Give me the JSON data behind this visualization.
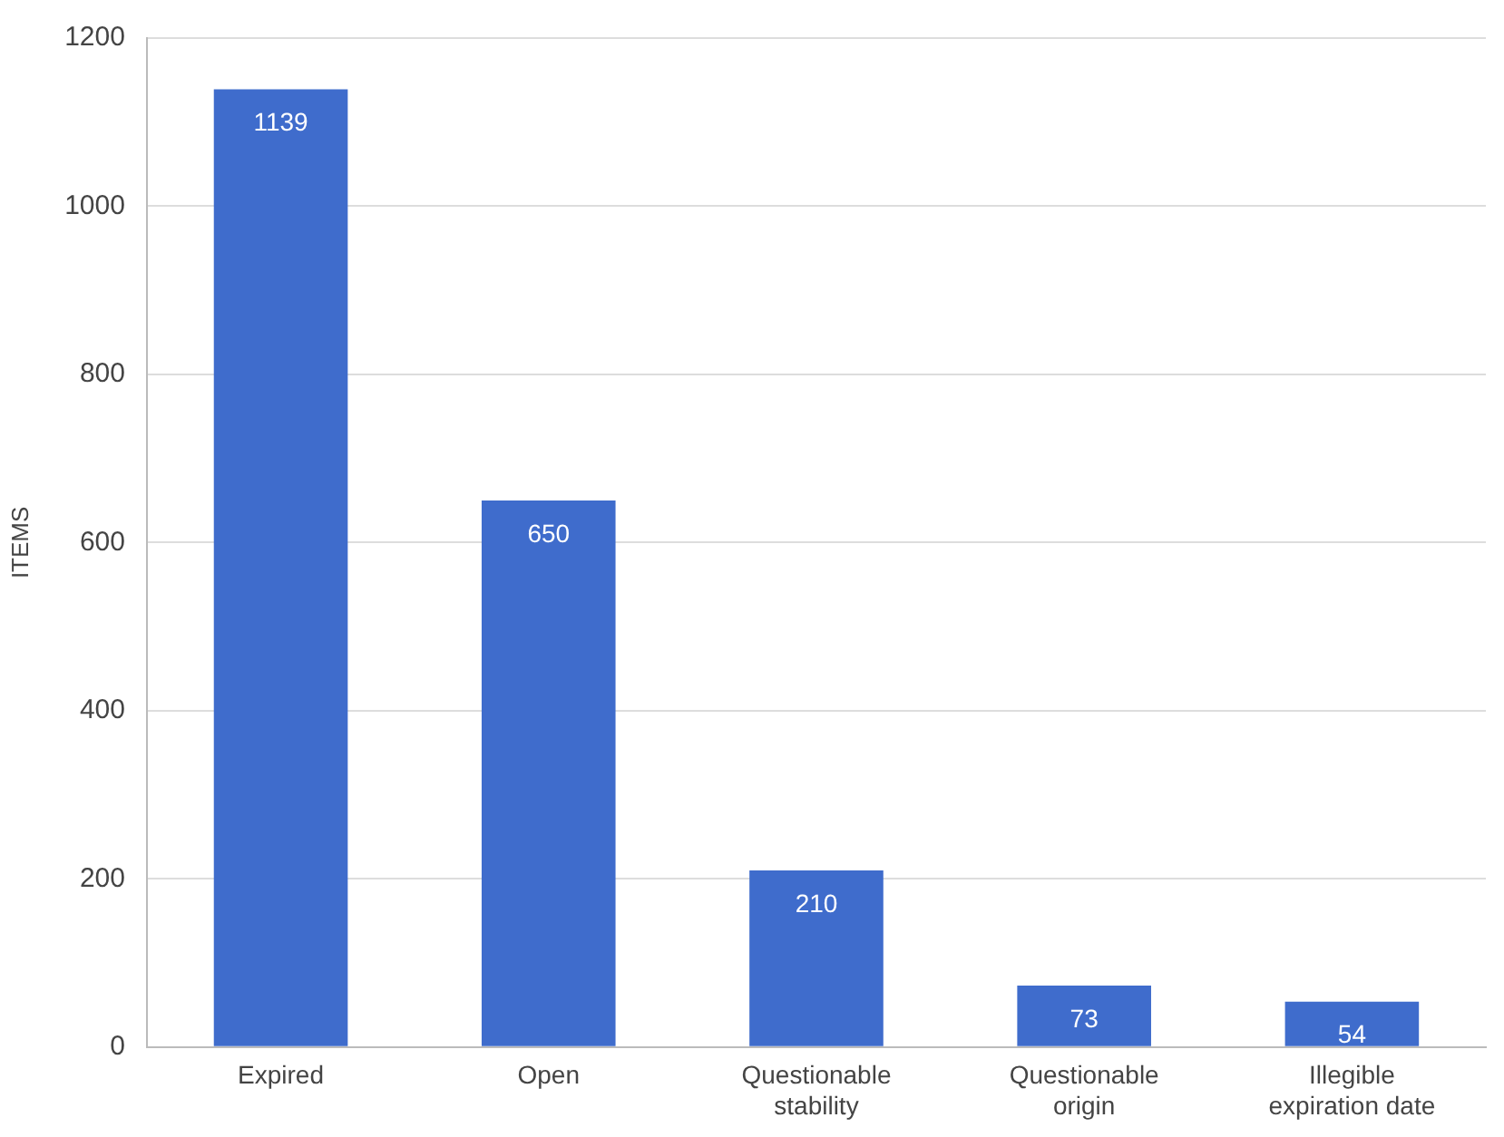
{
  "chart_data": {
    "type": "bar",
    "ylabel": "ITEMS",
    "categories": [
      "Expired",
      "Open",
      "Questionable stability",
      "Questionable origin",
      "Illegible expiration date"
    ],
    "values": [
      1139,
      650,
      210,
      73,
      54
    ],
    "color": "#3f6ccc",
    "ylim": [
      0,
      1200
    ],
    "yticks": [
      0,
      200,
      400,
      600,
      800,
      1000,
      1200
    ],
    "grid": "y",
    "data_labels": true
  }
}
